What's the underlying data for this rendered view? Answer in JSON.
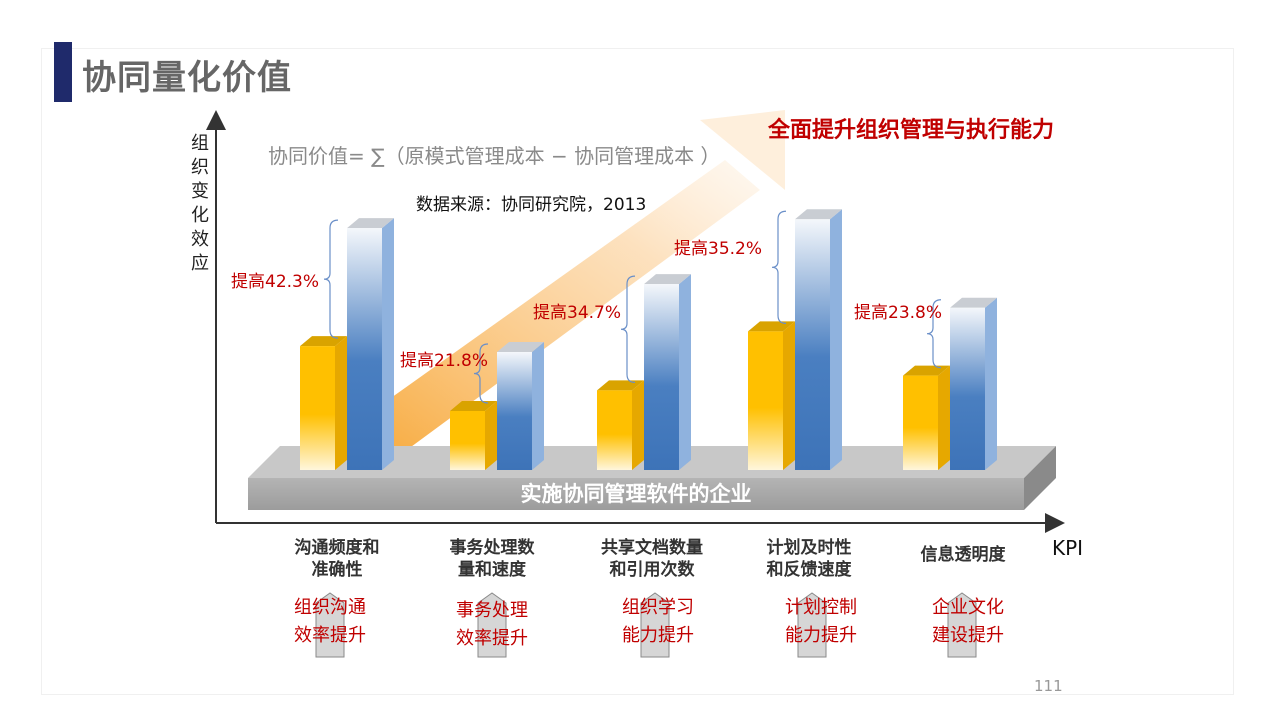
{
  "page": {
    "title": "协同量化价值",
    "page_number": "111"
  },
  "chart_data": {
    "type": "bar",
    "title": "全面提升组织管理与执行能力",
    "formula": "协同价值= ∑（原模式管理成本 − 协同管理成本 ）",
    "source": "数据来源：协同研究院，2013",
    "ylabel": [
      "组",
      "织",
      "变",
      "化",
      "效",
      "应"
    ],
    "xlabel": "KPI",
    "base_label": "实施协同管理软件的企业",
    "categories": [
      [
        "沟通频度和",
        "准确性"
      ],
      [
        "事务处理数",
        "量和速度"
      ],
      [
        "共享文档数量",
        "和引用次数"
      ],
      [
        "计划及时性",
        "和反馈速度"
      ],
      [
        "信息透明度"
      ]
    ],
    "series": [
      {
        "values": [
          42,
          20,
          27,
          47,
          32
        ],
        "color": "#ffc000"
      },
      {
        "values": [
          82,
          40,
          63,
          85,
          55
        ],
        "color": "#4a7fc1"
      }
    ],
    "improvements": [
      "提高42.3%",
      "提高21.8%",
      "提高34.7%",
      "提高35.2%",
      "提高23.8%"
    ],
    "results": [
      [
        "组织沟通",
        "效率提升"
      ],
      [
        "事务处理",
        "效率提升"
      ],
      [
        "组织学习",
        "能力提升"
      ],
      [
        "计划控制",
        "能力提升"
      ],
      [
        "企业文化",
        "建设提升"
      ]
    ],
    "ylim": [
      0,
      100
    ]
  }
}
